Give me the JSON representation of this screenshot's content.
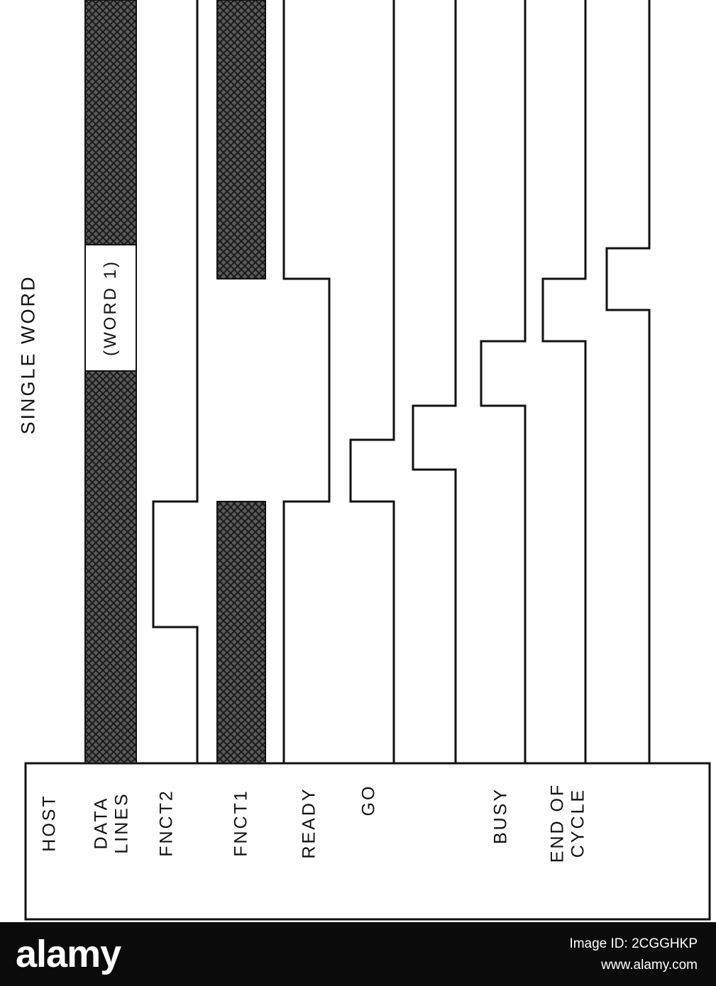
{
  "title": "SINGLE WORD",
  "header_label": "HOST",
  "data_word_label": "(WORD 1)",
  "signals": [
    {
      "key": "data",
      "lines": [
        "DATA",
        "LINES"
      ]
    },
    {
      "key": "fnct2",
      "lines": [
        "FNCT2"
      ]
    },
    {
      "key": "fnct1",
      "lines": [
        "FNCT1"
      ]
    },
    {
      "key": "ready",
      "lines": [
        "READY"
      ]
    },
    {
      "key": "go",
      "lines": [
        "GO"
      ]
    },
    {
      "key": "busy",
      "lines": [
        "BUSY"
      ]
    },
    {
      "key": "eoc",
      "lines": [
        "END OF",
        "CYCLE"
      ]
    }
  ],
  "colors": {
    "ink": "#111111",
    "hatch_fill": "#5a5a5a",
    "footer_bg": "#0b0b0b"
  },
  "footer": {
    "logo": "alamy",
    "image_id": "Image ID: 2CGGHKP",
    "url": "www.alamy.com"
  }
}
